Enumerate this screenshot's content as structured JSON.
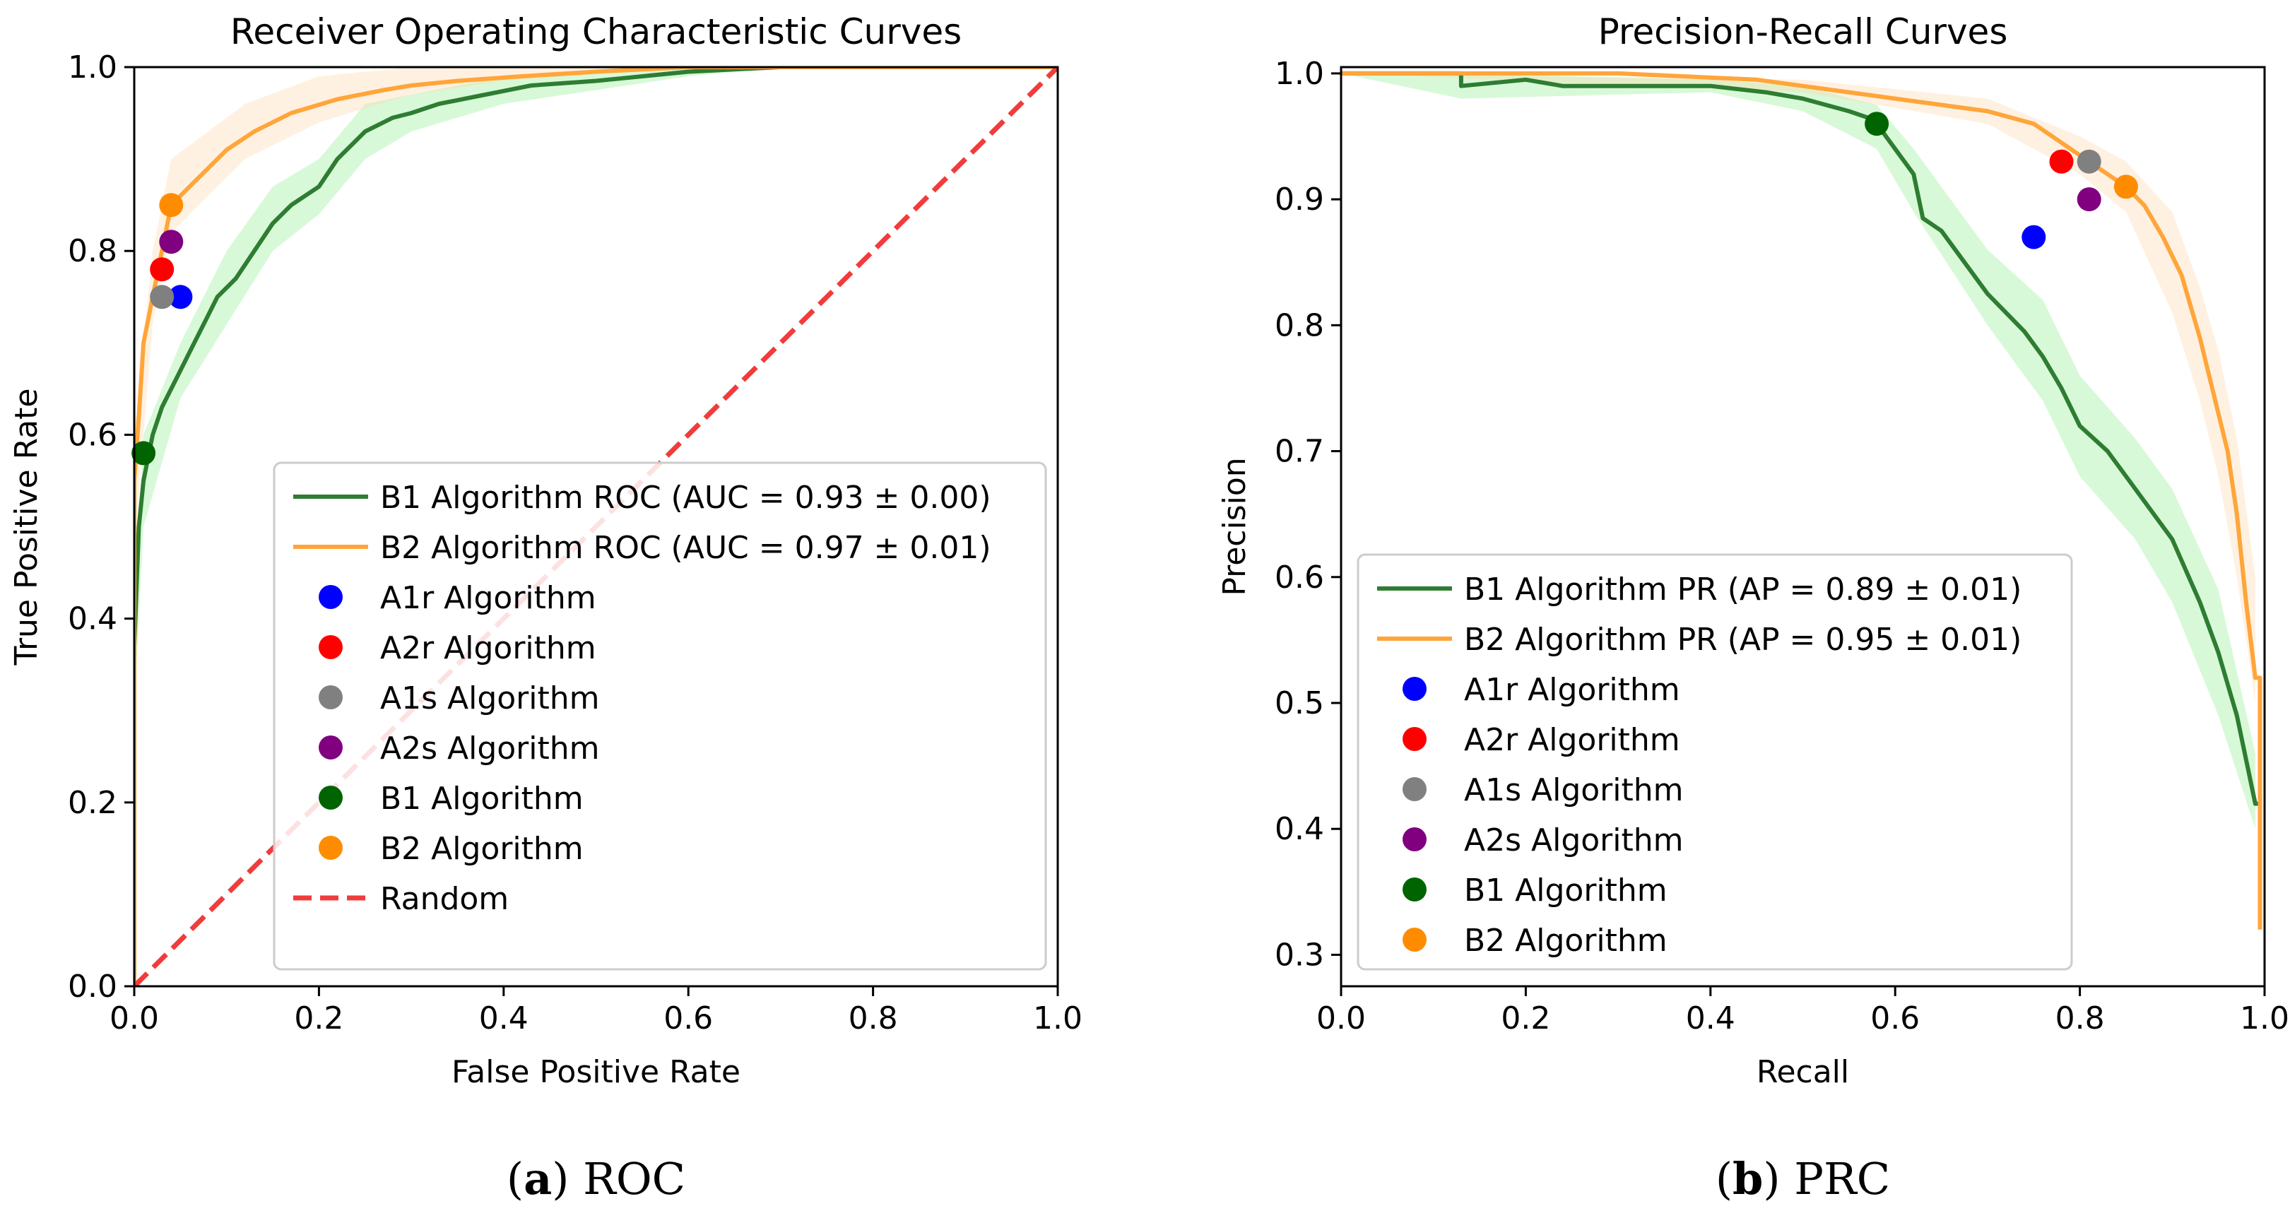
{
  "chart_data": [
    {
      "type": "line",
      "title": "Receiver Operating Characteristic Curves",
      "xlabel": "False Positive Rate",
      "ylabel": "True Positive Rate",
      "xlim": [
        0.0,
        1.0
      ],
      "ylim": [
        0.0,
        1.0
      ],
      "xticks": [
        "0.0",
        "0.2",
        "0.4",
        "0.6",
        "0.8",
        "1.0"
      ],
      "yticks": [
        "0.0",
        "0.2",
        "0.4",
        "0.6",
        "0.8",
        "1.0"
      ],
      "grid": false,
      "legend_position": "lower-right",
      "caption_label": "(a)",
      "caption_text": " ROC",
      "series": [
        {
          "name": "B1 Algorithm ROC (AUC = 0.93 ± 0.00)",
          "color": "#2e7d32",
          "band_color": "#90ee90",
          "points": [
            [
              0.0,
              0.0
            ],
            [
              0.0,
              0.37
            ],
            [
              0.005,
              0.5
            ],
            [
              0.01,
              0.55
            ],
            [
              0.02,
              0.6
            ],
            [
              0.03,
              0.63
            ],
            [
              0.05,
              0.67
            ],
            [
              0.06,
              0.69
            ],
            [
              0.08,
              0.73
            ],
            [
              0.09,
              0.75
            ],
            [
              0.11,
              0.77
            ],
            [
              0.13,
              0.8
            ],
            [
              0.15,
              0.83
            ],
            [
              0.17,
              0.85
            ],
            [
              0.2,
              0.87
            ],
            [
              0.22,
              0.9
            ],
            [
              0.25,
              0.93
            ],
            [
              0.28,
              0.945
            ],
            [
              0.3,
              0.95
            ],
            [
              0.33,
              0.96
            ],
            [
              0.38,
              0.97
            ],
            [
              0.43,
              0.98
            ],
            [
              0.5,
              0.985
            ],
            [
              0.6,
              0.995
            ],
            [
              0.7,
              1.0
            ],
            [
              1.0,
              1.0
            ]
          ],
          "band": [
            [
              0.0,
              0.3,
              0.42
            ],
            [
              0.01,
              0.5,
              0.6
            ],
            [
              0.05,
              0.64,
              0.7
            ],
            [
              0.1,
              0.72,
              0.8
            ],
            [
              0.15,
              0.8,
              0.87
            ],
            [
              0.2,
              0.84,
              0.9
            ],
            [
              0.25,
              0.9,
              0.96
            ],
            [
              0.3,
              0.93,
              0.97
            ],
            [
              0.4,
              0.96,
              0.99
            ],
            [
              0.5,
              0.975,
              0.995
            ],
            [
              0.6,
              0.99,
              1.0
            ],
            [
              0.7,
              1.0,
              1.0
            ],
            [
              1.0,
              1.0,
              1.0
            ]
          ]
        },
        {
          "name": "B2 Algorithm ROC (AUC = 0.97 ± 0.01)",
          "color": "#ffa53a",
          "band_color": "#ffd8a8",
          "points": [
            [
              0.0,
              0.0
            ],
            [
              0.0,
              0.55
            ],
            [
              0.005,
              0.62
            ],
            [
              0.01,
              0.7
            ],
            [
              0.02,
              0.75
            ],
            [
              0.03,
              0.8
            ],
            [
              0.04,
              0.85
            ],
            [
              0.06,
              0.87
            ],
            [
              0.08,
              0.89
            ],
            [
              0.1,
              0.91
            ],
            [
              0.13,
              0.93
            ],
            [
              0.17,
              0.95
            ],
            [
              0.22,
              0.965
            ],
            [
              0.27,
              0.975
            ],
            [
              0.3,
              0.98
            ],
            [
              0.35,
              0.985
            ],
            [
              0.42,
              0.99
            ],
            [
              0.5,
              0.995
            ],
            [
              0.6,
              1.0
            ],
            [
              1.0,
              1.0
            ]
          ],
          "band": [
            [
              0.0,
              0.48,
              0.6
            ],
            [
              0.02,
              0.72,
              0.8
            ],
            [
              0.04,
              0.82,
              0.9
            ],
            [
              0.08,
              0.86,
              0.93
            ],
            [
              0.12,
              0.9,
              0.96
            ],
            [
              0.2,
              0.94,
              0.99
            ],
            [
              0.3,
              0.97,
              1.0
            ],
            [
              0.4,
              0.985,
              1.0
            ],
            [
              0.6,
              1.0,
              1.0
            ],
            [
              1.0,
              1.0,
              1.0
            ]
          ]
        },
        {
          "name": "Random",
          "color": "#f23b3b",
          "dashed": true,
          "points": [
            [
              0.0,
              0.0
            ],
            [
              1.0,
              1.0
            ]
          ]
        }
      ],
      "markers": [
        {
          "name": "A1r Algorithm",
          "color": "#0000ff",
          "x": 0.05,
          "y": 0.75
        },
        {
          "name": "A2r Algorithm",
          "color": "#ff0000",
          "x": 0.03,
          "y": 0.78
        },
        {
          "name": "A1s Algorithm",
          "color": "#808080",
          "x": 0.03,
          "y": 0.75
        },
        {
          "name": "A2s Algorithm",
          "color": "#800080",
          "x": 0.04,
          "y": 0.81
        },
        {
          "name": "B1 Algorithm",
          "color": "#006400",
          "x": 0.01,
          "y": 0.58
        },
        {
          "name": "B2 Algorithm",
          "color": "#ff8c00",
          "x": 0.04,
          "y": 0.85
        }
      ],
      "legend_order": [
        "B1 Algorithm ROC (AUC = 0.93 ± 0.00)",
        "B2 Algorithm ROC (AUC = 0.97 ± 0.01)",
        "A1r Algorithm",
        "A2r Algorithm",
        "A1s Algorithm",
        "A2s Algorithm",
        "B1 Algorithm",
        "B2 Algorithm",
        "Random"
      ]
    },
    {
      "type": "line",
      "title": "Precision-Recall Curves",
      "xlabel": "Recall",
      "ylabel": "Precision",
      "xlim": [
        0.0,
        1.0
      ],
      "ylim": [
        0.275,
        1.005
      ],
      "xticks": [
        "0.0",
        "0.2",
        "0.4",
        "0.6",
        "0.8",
        "1.0"
      ],
      "yticks": [
        "0.3",
        "0.4",
        "0.5",
        "0.6",
        "0.7",
        "0.8",
        "0.9",
        "1.0"
      ],
      "grid": false,
      "legend_position": "lower-left",
      "caption_label": "(b)",
      "caption_text": " PRC",
      "series": [
        {
          "name": "B1 Algorithm PR (AP = 0.89 ± 0.01)",
          "color": "#2e7d32",
          "band_color": "#90ee90",
          "points": [
            [
              0.0,
              1.0
            ],
            [
              0.13,
              1.0
            ],
            [
              0.13,
              0.99
            ],
            [
              0.2,
              0.995
            ],
            [
              0.24,
              0.99
            ],
            [
              0.3,
              0.99
            ],
            [
              0.4,
              0.99
            ],
            [
              0.46,
              0.985
            ],
            [
              0.5,
              0.98
            ],
            [
              0.55,
              0.97
            ],
            [
              0.57,
              0.965
            ],
            [
              0.58,
              0.96
            ],
            [
              0.6,
              0.94
            ],
            [
              0.62,
              0.92
            ],
            [
              0.63,
              0.885
            ],
            [
              0.65,
              0.875
            ],
            [
              0.67,
              0.855
            ],
            [
              0.7,
              0.825
            ],
            [
              0.72,
              0.81
            ],
            [
              0.74,
              0.795
            ],
            [
              0.76,
              0.775
            ],
            [
              0.78,
              0.75
            ],
            [
              0.8,
              0.72
            ],
            [
              0.83,
              0.7
            ],
            [
              0.86,
              0.67
            ],
            [
              0.9,
              0.63
            ],
            [
              0.93,
              0.58
            ],
            [
              0.95,
              0.54
            ],
            [
              0.97,
              0.49
            ],
            [
              0.99,
              0.42
            ],
            [
              0.995,
              0.42
            ]
          ],
          "band": [
            [
              0.0,
              1.0,
              1.0
            ],
            [
              0.13,
              0.98,
              1.0
            ],
            [
              0.4,
              0.985,
              0.995
            ],
            [
              0.5,
              0.97,
              0.99
            ],
            [
              0.58,
              0.94,
              0.975
            ],
            [
              0.62,
              0.89,
              0.94
            ],
            [
              0.7,
              0.8,
              0.86
            ],
            [
              0.76,
              0.74,
              0.82
            ],
            [
              0.8,
              0.68,
              0.76
            ],
            [
              0.86,
              0.63,
              0.71
            ],
            [
              0.9,
              0.58,
              0.67
            ],
            [
              0.95,
              0.49,
              0.59
            ],
            [
              0.99,
              0.4,
              0.46
            ]
          ]
        },
        {
          "name": "B2 Algorithm PR (AP = 0.95 ± 0.01)",
          "color": "#ffa53a",
          "band_color": "#ffd8a8",
          "points": [
            [
              0.0,
              1.0
            ],
            [
              0.3,
              1.0
            ],
            [
              0.45,
              0.995
            ],
            [
              0.5,
              0.99
            ],
            [
              0.55,
              0.985
            ],
            [
              0.6,
              0.98
            ],
            [
              0.65,
              0.975
            ],
            [
              0.7,
              0.97
            ],
            [
              0.75,
              0.96
            ],
            [
              0.78,
              0.945
            ],
            [
              0.8,
              0.935
            ],
            [
              0.82,
              0.925
            ],
            [
              0.85,
              0.91
            ],
            [
              0.87,
              0.895
            ],
            [
              0.89,
              0.87
            ],
            [
              0.91,
              0.84
            ],
            [
              0.93,
              0.79
            ],
            [
              0.95,
              0.73
            ],
            [
              0.96,
              0.7
            ],
            [
              0.97,
              0.65
            ],
            [
              0.98,
              0.58
            ],
            [
              0.99,
              0.52
            ],
            [
              0.995,
              0.52
            ],
            [
              0.995,
              0.32
            ]
          ],
          "band": [
            [
              0.0,
              1.0,
              1.0
            ],
            [
              0.5,
              0.985,
              0.995
            ],
            [
              0.7,
              0.96,
              0.98
            ],
            [
              0.8,
              0.92,
              0.95
            ],
            [
              0.85,
              0.89,
              0.93
            ],
            [
              0.9,
              0.81,
              0.89
            ],
            [
              0.93,
              0.74,
              0.83
            ],
            [
              0.95,
              0.68,
              0.78
            ],
            [
              0.97,
              0.6,
              0.71
            ],
            [
              0.99,
              0.5,
              0.6
            ]
          ]
        }
      ],
      "markers": [
        {
          "name": "A1r Algorithm",
          "color": "#0000ff",
          "x": 0.75,
          "y": 0.87
        },
        {
          "name": "A2r Algorithm",
          "color": "#ff0000",
          "x": 0.78,
          "y": 0.93
        },
        {
          "name": "A1s Algorithm",
          "color": "#808080",
          "x": 0.81,
          "y": 0.93
        },
        {
          "name": "A2s Algorithm",
          "color": "#800080",
          "x": 0.81,
          "y": 0.9
        },
        {
          "name": "B1 Algorithm",
          "color": "#006400",
          "x": 0.58,
          "y": 0.96
        },
        {
          "name": "B2 Algorithm",
          "color": "#ff8c00",
          "x": 0.85,
          "y": 0.91
        }
      ],
      "legend_order": [
        "B1 Algorithm PR (AP = 0.89 ± 0.01)",
        "B2 Algorithm PR (AP = 0.95 ± 0.01)",
        "A1r Algorithm",
        "A2r Algorithm",
        "A1s Algorithm",
        "A2s Algorithm",
        "B1 Algorithm",
        "B2 Algorithm"
      ]
    }
  ]
}
